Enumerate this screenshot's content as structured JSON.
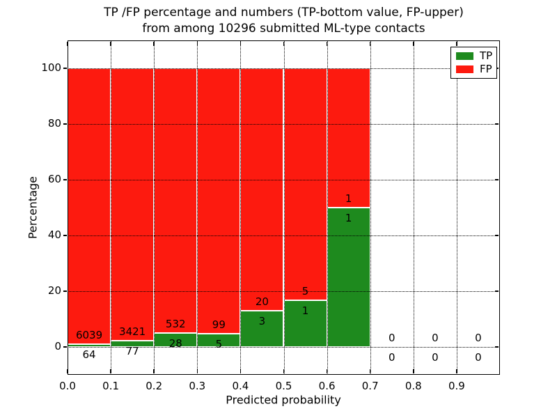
{
  "figure": {
    "title_line1": "TP /FP percentage and numbers (TP-bottom value, FP-upper)",
    "title_line2": "from among 10296 submitted ML-type contacts",
    "xlabel": "Predicted probability",
    "ylabel": "Percentage"
  },
  "legend": {
    "items": [
      {
        "label": "TP",
        "color": "#1e8a1e"
      },
      {
        "label": "FP",
        "color": "#fd1a0f"
      }
    ]
  },
  "chart_data": {
    "type": "bar",
    "stacked": true,
    "normalized_to_percent": true,
    "title": "TP /FP percentage and numbers (TP-bottom value, FP-upper) from among 10296 submitted ML-type contacts",
    "xlabel": "Predicted probability",
    "ylabel": "Percentage",
    "total_contacts": 10296,
    "xlim": [
      0.0,
      1.0
    ],
    "ylim": [
      -10,
      110
    ],
    "x_ticks": [
      "0.0",
      "0.1",
      "0.2",
      "0.3",
      "0.4",
      "0.5",
      "0.6",
      "0.7",
      "0.8",
      "0.9"
    ],
    "y_ticks": [
      0,
      20,
      40,
      60,
      80,
      100
    ],
    "grid": "dotted black, vertical at each 0.1, horizontal at each y tick",
    "legend_position": "upper right",
    "bin_width": 0.1,
    "colors": {
      "tp": "#1e8a1e",
      "fp": "#fd1a0f",
      "bar_edge": "#ffffff"
    },
    "series": [
      {
        "name": "TP",
        "color": "#1e8a1e",
        "values": [
          64,
          77,
          28,
          5,
          3,
          1,
          1,
          0,
          0,
          0
        ]
      },
      {
        "name": "FP",
        "color": "#fd1a0f",
        "values": [
          6039,
          3421,
          532,
          99,
          20,
          5,
          1,
          0,
          0,
          0
        ]
      }
    ],
    "bins": [
      {
        "range": [
          0.0,
          0.1
        ],
        "tp": 64,
        "fp": 6039,
        "tp_pct": 1.05,
        "fp_pct": 98.95
      },
      {
        "range": [
          0.1,
          0.2
        ],
        "tp": 77,
        "fp": 3421,
        "tp_pct": 2.2,
        "fp_pct": 97.8
      },
      {
        "range": [
          0.2,
          0.3
        ],
        "tp": 28,
        "fp": 532,
        "tp_pct": 5.0,
        "fp_pct": 95.0
      },
      {
        "range": [
          0.3,
          0.4
        ],
        "tp": 5,
        "fp": 99,
        "tp_pct": 4.81,
        "fp_pct": 95.19
      },
      {
        "range": [
          0.4,
          0.5
        ],
        "tp": 3,
        "fp": 20,
        "tp_pct": 13.04,
        "fp_pct": 86.96
      },
      {
        "range": [
          0.5,
          0.6
        ],
        "tp": 1,
        "fp": 5,
        "tp_pct": 16.67,
        "fp_pct": 83.33
      },
      {
        "range": [
          0.6,
          0.7
        ],
        "tp": 1,
        "fp": 1,
        "tp_pct": 50.0,
        "fp_pct": 50.0
      },
      {
        "range": [
          0.7,
          0.8
        ],
        "tp": 0,
        "fp": 0,
        "tp_pct": 0,
        "fp_pct": 0
      },
      {
        "range": [
          0.8,
          0.9
        ],
        "tp": 0,
        "fp": 0,
        "tp_pct": 0,
        "fp_pct": 0
      },
      {
        "range": [
          0.9,
          1.0
        ],
        "tp": 0,
        "fp": 0,
        "tp_pct": 0,
        "fp_pct": 0
      }
    ]
  }
}
